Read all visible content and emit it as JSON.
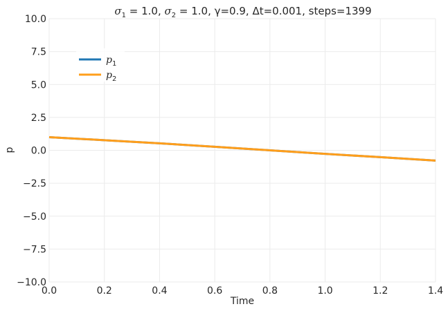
{
  "chart_data": {
    "type": "line",
    "title": "σ₁ = 1.0, σ₂ = 1.0, γ=0.9, Δt=0.001, steps=1399",
    "xlabel": "Time",
    "ylabel": "p",
    "xlim": [
      0,
      1.4
    ],
    "ylim": [
      -10,
      10
    ],
    "xticks": [
      "0.0",
      "0.2",
      "0.4",
      "0.6",
      "0.8",
      "1.0",
      "1.2",
      "1.4"
    ],
    "yticks": [
      "10.0",
      "7.5",
      "5.0",
      "2.5",
      "0.0",
      "−2.5",
      "−5.0",
      "−7.5",
      "−10.0"
    ],
    "grid": true,
    "legend_position": "upper-left",
    "series": [
      {
        "name": "p1",
        "color": "#1f77b4",
        "x": [
          0,
          0.2,
          0.4,
          0.6,
          0.8,
          1.0,
          1.2,
          1.4
        ],
        "y": [
          1.0,
          0.77,
          0.53,
          0.27,
          0.0,
          -0.27,
          -0.52,
          -0.78
        ]
      },
      {
        "name": "p2",
        "color": "#ff9e1b",
        "x": [
          0,
          0.2,
          0.4,
          0.6,
          0.8,
          1.0,
          1.2,
          1.4
        ],
        "y": [
          1.0,
          0.77,
          0.53,
          0.27,
          0.0,
          -0.27,
          -0.52,
          -0.78
        ]
      }
    ]
  }
}
